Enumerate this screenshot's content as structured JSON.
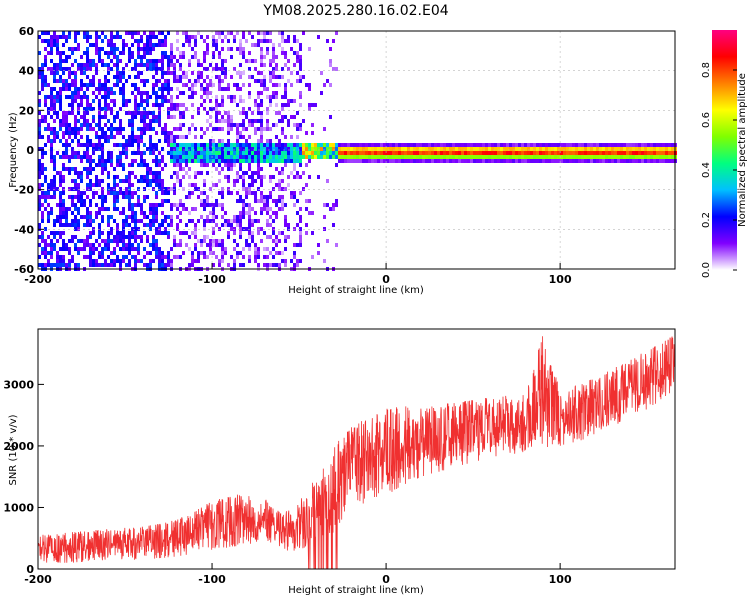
{
  "title": "YM08.2025.280.16.02.E04",
  "chart_data": [
    {
      "type": "heatmap",
      "name": "spectrogram",
      "xlabel": "Height of straight line (km)",
      "ylabel": "Frequency (Hz)",
      "xlim": [
        -200,
        166
      ],
      "ylim": [
        -60,
        60
      ],
      "xticks": [
        -200,
        -100,
        0,
        100
      ],
      "xtick_labels": [
        "-200",
        "-100",
        "0",
        "100"
      ],
      "yticks": [
        60,
        40,
        20,
        0,
        -20,
        -40,
        -60
      ],
      "ytick_labels": [
        "60",
        "40",
        "20",
        "0",
        "-20",
        "-40",
        "-60"
      ],
      "colorbar": {
        "label": "Normalized spectral amplitude",
        "range": [
          0,
          0.96
        ],
        "ticks": [
          0.0,
          0.2,
          0.4,
          0.6,
          0.8
        ],
        "tick_labels": [
          "0.0",
          "0.2",
          "0.4",
          "0.6",
          "0.8"
        ],
        "colors": [
          "#ffffff",
          "#8000ff",
          "#0000ff",
          "#00c0ff",
          "#00ff80",
          "#80ff00",
          "#ffff00",
          "#ff8000",
          "#ff0000",
          "#ff0080"
        ]
      },
      "regions": [
        {
          "x": [
            -200,
            -125
          ],
          "freq": [
            -60,
            60
          ],
          "amplitude": "low (0.1-0.25), scattered"
        },
        {
          "x": [
            -125,
            -50
          ],
          "freq": [
            -60,
            60
          ],
          "amplitude": "low (0.05-0.2), sparse"
        },
        {
          "x": [
            -125,
            -55
          ],
          "freq": [
            -5,
            5
          ],
          "amplitude": "0.2-0.5 band"
        },
        {
          "x": [
            -50,
            -28
          ],
          "freq": [
            -4,
            4
          ],
          "amplitude": "0.3-0.8 band"
        },
        {
          "x": [
            -28,
            166
          ],
          "freq": [
            -3,
            3
          ],
          "amplitude": "0.5-0.96 narrow band, peak near 0 Hz"
        }
      ]
    },
    {
      "type": "line",
      "name": "snr",
      "xlabel": "Height of straight line (km)",
      "ylabel": "SNR (10 * v/v)",
      "color": "#f03030",
      "xlim": [
        -200,
        166
      ],
      "ylim": [
        0,
        3900
      ],
      "xticks": [
        -200,
        -100,
        0,
        100
      ],
      "xtick_labels": [
        "-200",
        "-100",
        "0",
        "100"
      ],
      "yticks": [
        0,
        1000,
        2000,
        3000
      ],
      "ytick_labels": [
        "0",
        "1000",
        "2000",
        "3000"
      ],
      "x": [
        -200,
        -180,
        -160,
        -140,
        -120,
        -100,
        -80,
        -70,
        -60,
        -50,
        -40,
        -30,
        -20,
        -10,
        0,
        10,
        20,
        40,
        60,
        80,
        90,
        100,
        120,
        140,
        160,
        166
      ],
      "y_min": [
        100,
        100,
        150,
        150,
        200,
        300,
        400,
        450,
        350,
        200,
        400,
        600,
        900,
        1100,
        1200,
        1350,
        1500,
        1650,
        1800,
        1900,
        1950,
        2000,
        2150,
        2450,
        2750,
        2850
      ],
      "y_max": [
        550,
        600,
        650,
        700,
        800,
        1100,
        1300,
        1150,
        900,
        1100,
        1500,
        2000,
        2300,
        2500,
        2600,
        2650,
        2650,
        2700,
        2800,
        2850,
        3800,
        2900,
        3100,
        3400,
        3700,
        3850
      ]
    }
  ]
}
